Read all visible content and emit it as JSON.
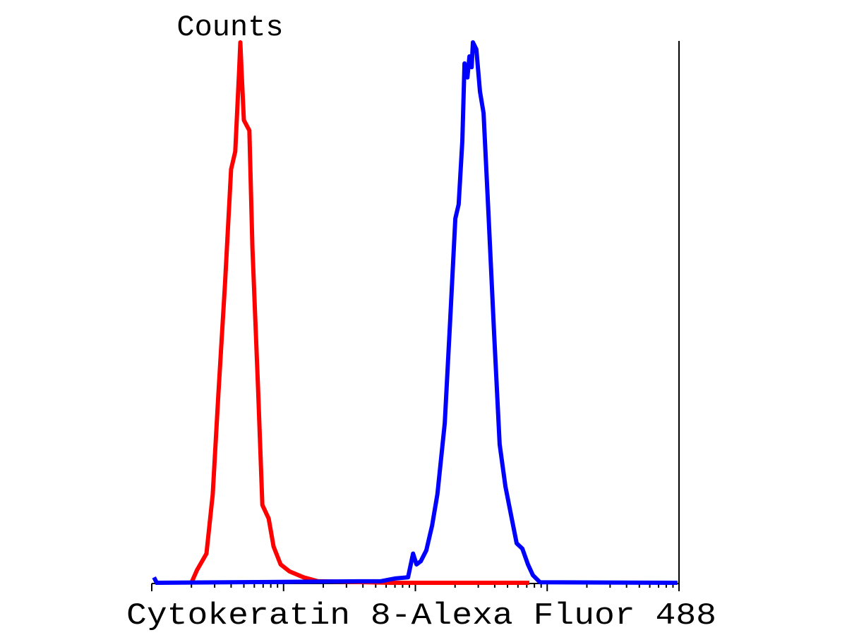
{
  "chart_data": {
    "type": "line",
    "title": "",
    "xlabel": "Cytokeratin 8-Alexa Fluor 488",
    "ylabel": "Counts",
    "x_scale": "log",
    "xlim": [
      1,
      10000
    ],
    "ylim": [
      0,
      100
    ],
    "grid": false,
    "legend": "none",
    "series": [
      {
        "color": "#ff0000",
        "x": [
          2.0,
          2.2,
          2.6,
          2.9,
          3.2,
          3.6,
          4.0,
          4.3,
          4.6,
          4.7,
          4.8,
          5.0,
          5.5,
          5.8,
          6.4,
          6.9,
          7.7,
          8.4,
          9.5,
          11.1,
          14.2,
          18.1,
          66,
          732
        ],
        "y": [
          0,
          2.3,
          5.4,
          16.4,
          34.7,
          55.6,
          76.5,
          79.8,
          94.8,
          100,
          94.8,
          85.6,
          83.7,
          62.1,
          36,
          14.4,
          11.9,
          6.7,
          3.4,
          2.1,
          1,
          0.3,
          0,
          0
        ]
      },
      {
        "color": "#0000ff",
        "x": [
          1.04,
          1.09,
          55,
          70,
          88,
          96,
          102,
          110,
          121,
          134,
          147,
          167,
          184,
          201,
          213,
          227,
          236,
          248,
          257,
          267,
          273,
          290,
          309,
          329,
          358,
          395,
          436,
          482,
          532,
          587,
          648,
          715,
          779,
          881,
          9750
        ],
        "y": [
          1.0,
          0,
          0.3,
          0.8,
          1.0,
          5.4,
          3.4,
          4.0,
          6.0,
          10.6,
          16.4,
          29.5,
          49.1,
          67.4,
          70.0,
          81.7,
          96.1,
          93.5,
          97.4,
          95.4,
          100,
          98.7,
          90.9,
          86.9,
          68.7,
          46.5,
          25.6,
          17.8,
          12.5,
          7.3,
          6.3,
          3.4,
          1.4,
          0.1,
          0
        ]
      }
    ]
  }
}
